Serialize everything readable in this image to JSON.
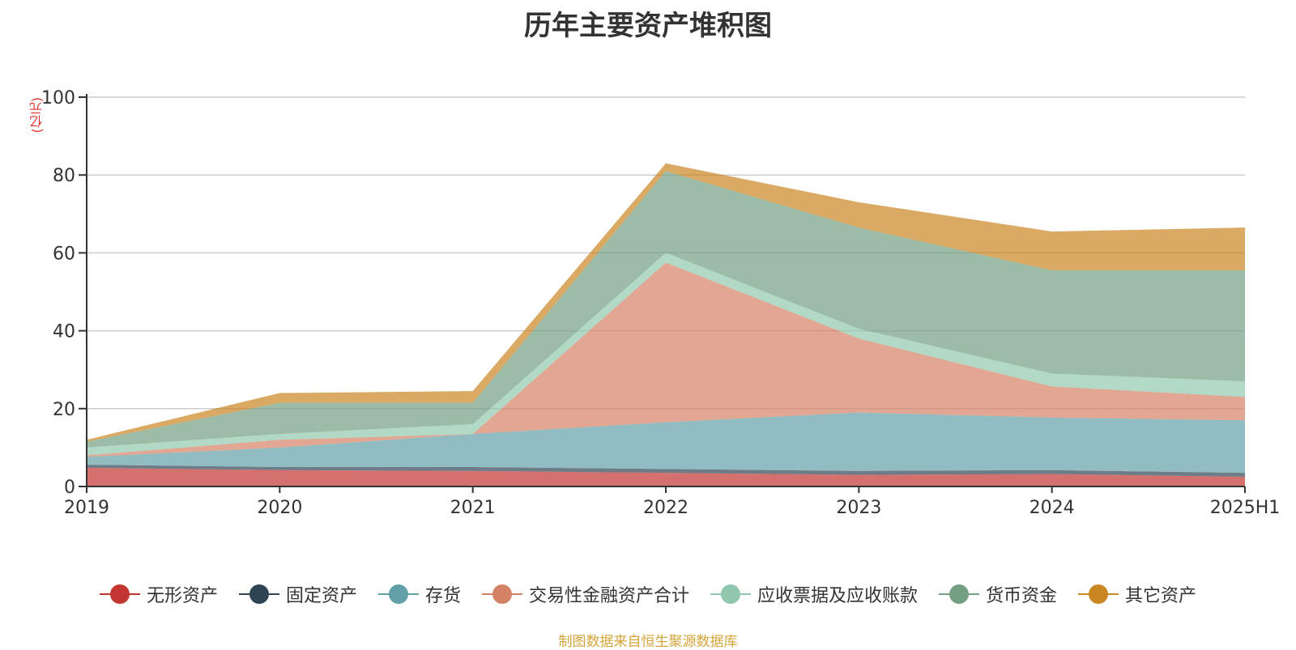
{
  "chart_data": {
    "type": "area",
    "title": "历年主要资产堆积图",
    "ylabel": "(亿元)",
    "x": [
      "2019",
      "2020",
      "2021",
      "2022",
      "2023",
      "2024",
      "2025H1"
    ],
    "ylim": [
      0,
      100
    ],
    "yticks": [
      0,
      20,
      40,
      60,
      80,
      100
    ],
    "grid": true,
    "stacked": true,
    "legend_position": "bottom",
    "series": [
      {
        "name": "无形资产",
        "color": "#c23531",
        "values": [
          4.8,
          4.2,
          4.0,
          3.5,
          3.0,
          3.2,
          2.5
        ]
      },
      {
        "name": "固定资产",
        "color": "#2f4554",
        "values": [
          0.8,
          0.8,
          1.0,
          1.0,
          1.0,
          1.0,
          1.0
        ]
      },
      {
        "name": "存货",
        "color": "#61a0a8",
        "values": [
          2.0,
          5.0,
          8.5,
          12.0,
          15.0,
          13.5,
          13.5
        ]
      },
      {
        "name": "交易性金融资产合计",
        "color": "#d48265",
        "values": [
          0.4,
          2.0,
          0.0,
          41.0,
          19.0,
          8.0,
          6.0
        ]
      },
      {
        "name": "应收票据及应收账款",
        "color": "#91c7ae",
        "values": [
          2.0,
          1.5,
          2.5,
          2.5,
          2.5,
          3.3,
          4.0
        ]
      },
      {
        "name": "货币资金",
        "color": "#749f83",
        "values": [
          1.5,
          8.0,
          5.5,
          21.0,
          26.0,
          26.5,
          28.5
        ]
      },
      {
        "name": "其它资产",
        "color": "#ca8622",
        "values": [
          0.5,
          2.5,
          3.0,
          2.0,
          6.5,
          10.0,
          11.0
        ]
      }
    ]
  },
  "source_note": "制图数据来自恒生聚源数据库"
}
